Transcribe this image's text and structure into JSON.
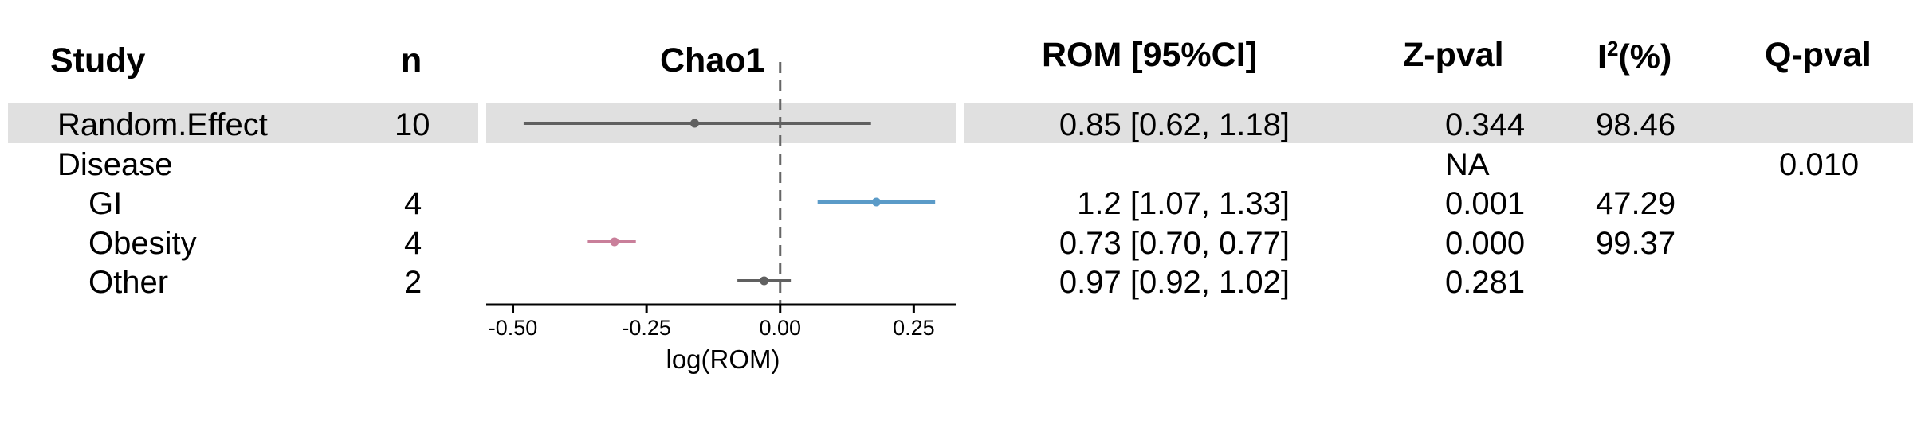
{
  "headers": {
    "study": "Study",
    "n": "n",
    "plot_title": "Chao1",
    "rom": "ROM [95%CI]",
    "zpval": "Z-pval",
    "i2_base": "I",
    "i2_sup": "2",
    "i2_tail": "(%)",
    "qpval": "Q-pval"
  },
  "rows": [
    {
      "study": "Random.Effect",
      "n": "10",
      "rom": "0.85 [0.62, 1.18]",
      "zpval": "0.344",
      "i2": "98.46",
      "qpval": ""
    },
    {
      "study": "Disease",
      "n": "",
      "rom": "",
      "zpval": "NA",
      "i2": "",
      "qpval": "0.010"
    },
    {
      "study": "GI",
      "n": "4",
      "rom": "1.2 [1.07, 1.33]",
      "zpval": "0.001",
      "i2": "47.29",
      "qpval": ""
    },
    {
      "study": "Obesity",
      "n": "4",
      "rom": "0.73 [0.70, 0.77]",
      "zpval": "0.000",
      "i2": "99.37",
      "qpval": ""
    },
    {
      "study": "Other",
      "n": "2",
      "rom": "0.97 [0.92, 1.02]",
      "zpval": "0.281",
      "i2": "",
      "qpval": ""
    }
  ],
  "chart_data": {
    "type": "forest",
    "title": "Chao1",
    "xlabel": "log(ROM)",
    "xlim": [
      -0.55,
      0.33
    ],
    "xticks": [
      -0.5,
      -0.25,
      0.0,
      0.25
    ],
    "xtick_labels": [
      "-0.50",
      "-0.25",
      "0.00",
      "0.25"
    ],
    "reference_line": 0,
    "points": [
      {
        "row": 0,
        "estimate": -0.16,
        "lower": -0.48,
        "upper": 0.17,
        "color": "#606060"
      },
      {
        "row": 2,
        "estimate": 0.18,
        "lower": 0.07,
        "upper": 0.29,
        "color": "#5b9bc8"
      },
      {
        "row": 3,
        "estimate": -0.31,
        "lower": -0.36,
        "upper": -0.27,
        "color": "#c97f9a"
      },
      {
        "row": 4,
        "estimate": -0.03,
        "lower": -0.08,
        "upper": 0.02,
        "color": "#606060"
      }
    ]
  }
}
